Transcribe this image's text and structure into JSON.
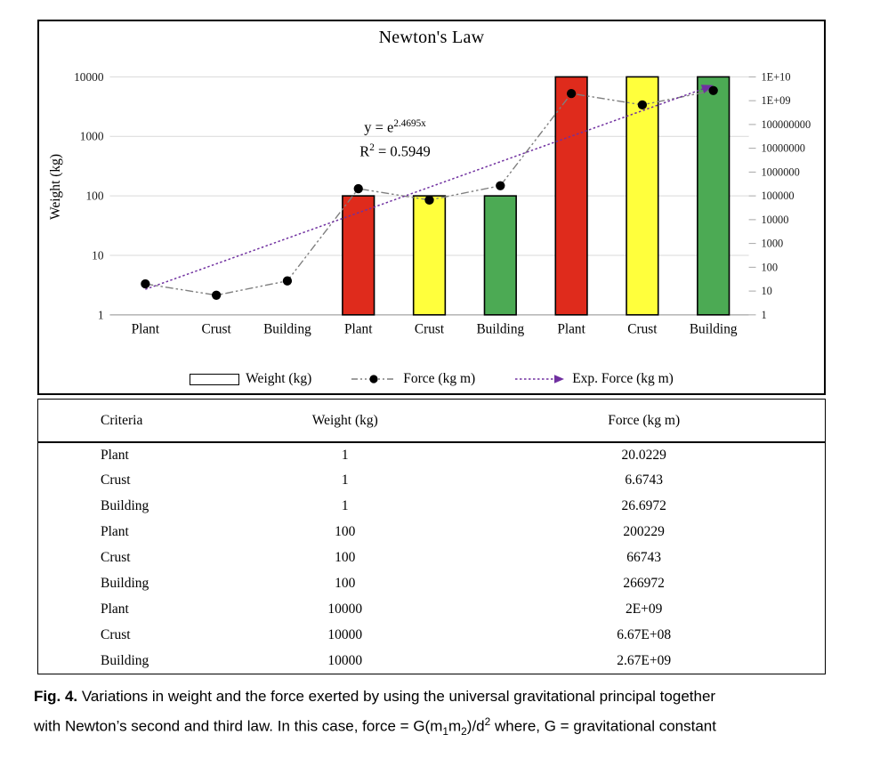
{
  "chart_data": {
    "type": "bar+line",
    "title": "Newton's Law",
    "categories": [
      "Plant",
      "Crust",
      "Building",
      "Plant",
      "Crust",
      "Building",
      "Plant",
      "Crust",
      "Building"
    ],
    "series": [
      {
        "name": "Weight (kg)",
        "type": "bar",
        "axis": "left",
        "values": [
          1,
          1,
          1,
          100,
          100,
          100,
          10000,
          10000,
          10000
        ]
      },
      {
        "name": "Force (kg m)",
        "type": "line",
        "axis": "right",
        "values": [
          20.0229,
          6.6743,
          26.6972,
          200229,
          66743,
          266972,
          2000000000,
          667000000,
          2670000000
        ]
      },
      {
        "name": "Exp. Force (kg m)",
        "type": "exponential-trendline",
        "axis": "right",
        "exponent_coef": 2.4695,
        "r_squared": 0.5949
      }
    ],
    "left_axis": {
      "label": "Weight (kg)",
      "scale": "log",
      "min": 1,
      "max": 10000,
      "ticks": [
        "10000",
        "1000",
        "100",
        "10",
        "1"
      ]
    },
    "right_axis": {
      "scale": "log",
      "min": 1,
      "max": 10000000000,
      "ticks": [
        "1E+10",
        "1E+09",
        "100000000",
        "10000000",
        "1000000",
        "100000",
        "10000",
        "1000",
        "100",
        "10",
        "1"
      ]
    },
    "annotation": {
      "line1_base": "y = e",
      "line1_sup": "2.4695x",
      "line2_base": "R",
      "line2_sup": "2",
      "line2_rest": " = 0.5949"
    },
    "style": {
      "bar_palette": [
        "#df2b1c",
        "#ffff3c",
        "#4caa54"
      ],
      "force_line": "#7f7f7f",
      "marker": "#000000",
      "trendline": "#7030a0",
      "gridline": "#d9d9d9",
      "axis_line": "#a6a6a6"
    },
    "legend_position": "bottom",
    "grid": true
  },
  "table": {
    "headers": [
      "Criteria",
      "Weight (kg)",
      "Force (kg m)"
    ],
    "rows": [
      [
        "Plant",
        "1",
        "20.0229"
      ],
      [
        "Crust",
        "1",
        "6.6743"
      ],
      [
        "Building",
        "1",
        "26.6972"
      ],
      [
        "Plant",
        "100",
        "200229"
      ],
      [
        "Crust",
        "100",
        "66743"
      ],
      [
        "Building",
        "100",
        "266972"
      ],
      [
        "Plant",
        "10000",
        "2E+09"
      ],
      [
        "Crust",
        "10000",
        "6.67E+08"
      ],
      [
        "Building",
        "10000",
        "2.67E+09"
      ]
    ]
  },
  "caption": {
    "label": "Fig. 4.",
    "line1": " Variations in weight and the force exerted by using the universal gravitational principal together",
    "line2a": "with Newton’s second and third law. In this case, force = G(m",
    "sub1": "1",
    "line2b": "m",
    "sub2": "2",
    "line2c": ")/d",
    "sup1": "2",
    "line2d": " where, G = gravitational constant"
  }
}
